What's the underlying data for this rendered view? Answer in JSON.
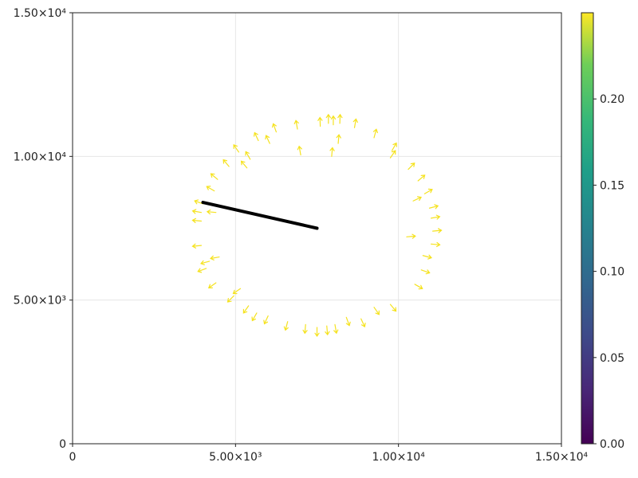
{
  "chart_data": {
    "type": "quiver",
    "title": "",
    "xlabel": "",
    "ylabel": "",
    "xlim": [
      0,
      15000
    ],
    "ylim": [
      0,
      15000
    ],
    "xticks": [
      0,
      5000,
      10000,
      15000
    ],
    "yticks": [
      0,
      5000,
      10000,
      15000
    ],
    "x_tick_labels": [
      "0",
      "5.00×10³",
      "1.00×10⁴",
      "1.50×10⁴"
    ],
    "y_tick_labels": [
      "0",
      "5.00×10³",
      "1.00×10⁴",
      "1.50×10⁴"
    ],
    "grid": true,
    "arrow_color": "#f5e21f",
    "arrow_value": 0.25,
    "arrows": [
      {
        "x": 7850,
        "y": 11150,
        "angle": 90
      },
      {
        "x": 8000,
        "y": 11100,
        "angle": 90
      },
      {
        "x": 8200,
        "y": 11150,
        "angle": 88
      },
      {
        "x": 7600,
        "y": 11050,
        "angle": 92
      },
      {
        "x": 8650,
        "y": 11000,
        "angle": 80
      },
      {
        "x": 6900,
        "y": 10950,
        "angle": 100
      },
      {
        "x": 6250,
        "y": 10850,
        "angle": 110
      },
      {
        "x": 9250,
        "y": 10650,
        "angle": 75
      },
      {
        "x": 5700,
        "y": 10550,
        "angle": 115
      },
      {
        "x": 8150,
        "y": 10450,
        "angle": 85
      },
      {
        "x": 6050,
        "y": 10450,
        "angle": 115
      },
      {
        "x": 9800,
        "y": 10200,
        "angle": 60
      },
      {
        "x": 5100,
        "y": 10150,
        "angle": 125
      },
      {
        "x": 7000,
        "y": 10050,
        "angle": 100
      },
      {
        "x": 7950,
        "y": 10000,
        "angle": 85
      },
      {
        "x": 5450,
        "y": 9900,
        "angle": 120
      },
      {
        "x": 9750,
        "y": 9950,
        "angle": 55
      },
      {
        "x": 4800,
        "y": 9650,
        "angle": 130
      },
      {
        "x": 5350,
        "y": 9600,
        "angle": 130
      },
      {
        "x": 10300,
        "y": 9550,
        "angle": 45
      },
      {
        "x": 4450,
        "y": 9200,
        "angle": 140
      },
      {
        "x": 10600,
        "y": 9150,
        "angle": 40
      },
      {
        "x": 4350,
        "y": 8800,
        "angle": 150
      },
      {
        "x": 10800,
        "y": 8700,
        "angle": 30
      },
      {
        "x": 10450,
        "y": 8450,
        "angle": 25
      },
      {
        "x": 4000,
        "y": 8350,
        "angle": 160
      },
      {
        "x": 10950,
        "y": 8200,
        "angle": 15
      },
      {
        "x": 3950,
        "y": 8050,
        "angle": 170
      },
      {
        "x": 4400,
        "y": 8050,
        "angle": 175
      },
      {
        "x": 11000,
        "y": 7850,
        "angle": 10
      },
      {
        "x": 3950,
        "y": 7750,
        "angle": 175
      },
      {
        "x": 11050,
        "y": 7400,
        "angle": 5
      },
      {
        "x": 10250,
        "y": 7200,
        "angle": 5
      },
      {
        "x": 11000,
        "y": 6950,
        "angle": -5
      },
      {
        "x": 3950,
        "y": 6900,
        "angle": 185
      },
      {
        "x": 10750,
        "y": 6550,
        "angle": -15
      },
      {
        "x": 4500,
        "y": 6500,
        "angle": 190
      },
      {
        "x": 4200,
        "y": 6350,
        "angle": 195
      },
      {
        "x": 4100,
        "y": 6100,
        "angle": 200
      },
      {
        "x": 10700,
        "y": 6050,
        "angle": -20
      },
      {
        "x": 4400,
        "y": 5600,
        "angle": 215
      },
      {
        "x": 10500,
        "y": 5550,
        "angle": -30
      },
      {
        "x": 5150,
        "y": 5400,
        "angle": 215
      },
      {
        "x": 4950,
        "y": 5150,
        "angle": 225
      },
      {
        "x": 5400,
        "y": 4800,
        "angle": 235
      },
      {
        "x": 9750,
        "y": 4850,
        "angle": -50
      },
      {
        "x": 9250,
        "y": 4750,
        "angle": -55
      },
      {
        "x": 5650,
        "y": 4550,
        "angle": 240
      },
      {
        "x": 6000,
        "y": 4450,
        "angle": 245
      },
      {
        "x": 8400,
        "y": 4400,
        "angle": -70
      },
      {
        "x": 8850,
        "y": 4350,
        "angle": -65
      },
      {
        "x": 6600,
        "y": 4250,
        "angle": 255
      },
      {
        "x": 7150,
        "y": 4150,
        "angle": 265
      },
      {
        "x": 7500,
        "y": 4050,
        "angle": 270
      },
      {
        "x": 7800,
        "y": 4100,
        "angle": 275
      },
      {
        "x": 8050,
        "y": 4150,
        "angle": -80
      }
    ],
    "line": {
      "color": "#000000",
      "points": [
        [
          4000,
          8400
        ],
        [
          7500,
          7500
        ]
      ]
    },
    "colorbar": {
      "min": 0,
      "max": 0.25,
      "ticks": [
        0.0,
        0.05,
        0.1,
        0.15,
        0.2
      ],
      "tick_labels": [
        "0.00",
        "0.05",
        "0.10",
        "0.15",
        "0.20"
      ],
      "colormap": "viridis"
    }
  }
}
